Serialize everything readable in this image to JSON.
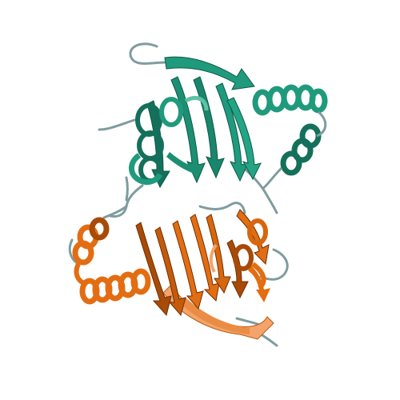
{
  "image": {
    "subject": "protein-ribbon-structure",
    "background_color": "#ffffff",
    "chains": [
      {
        "name": "chain-A",
        "color": "#1f9a7c",
        "dark": "#14705a",
        "light": "#5fc2a5"
      },
      {
        "name": "chain-B",
        "color": "#e36d12",
        "dark": "#a84a08",
        "light": "#f4a46a"
      }
    ],
    "loop_color": "#8a9aa6"
  }
}
